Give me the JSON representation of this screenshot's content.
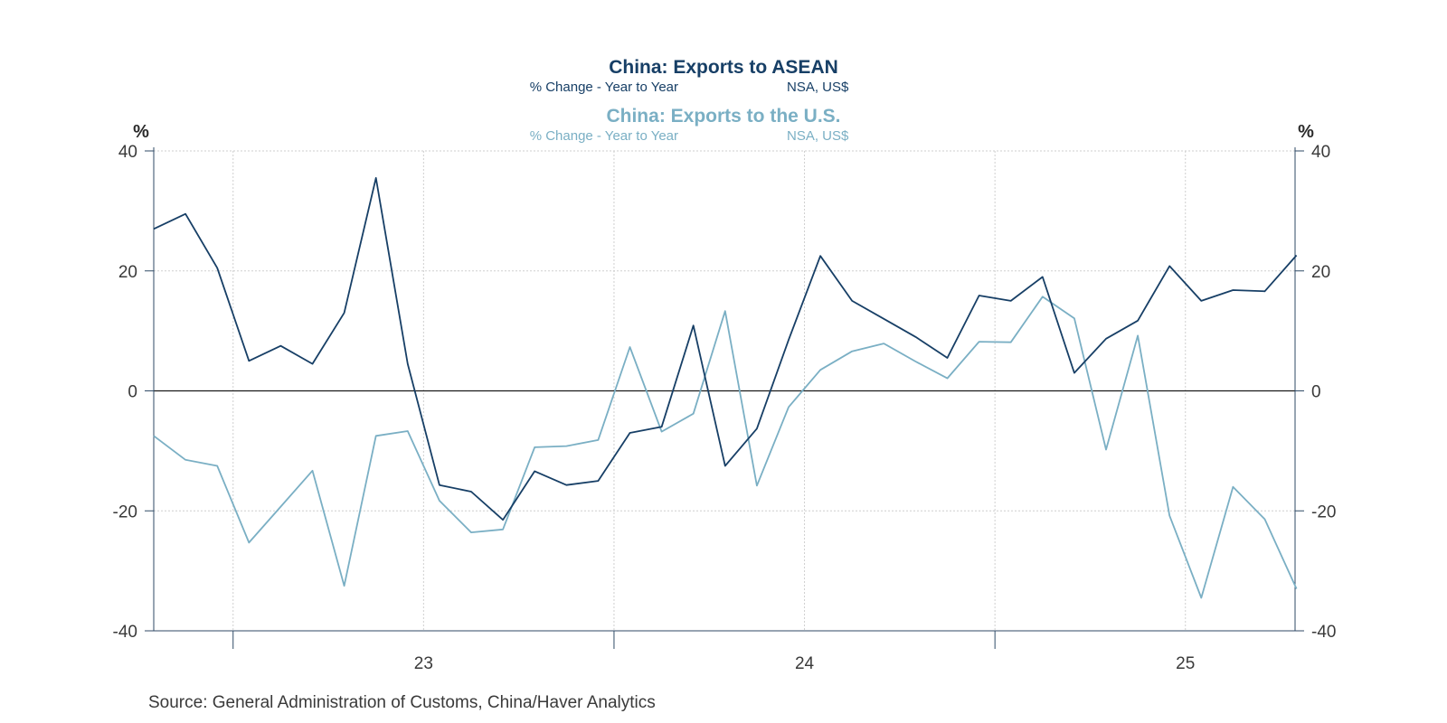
{
  "colors": {
    "series1": "#173f66",
    "series2": "#7aafc4",
    "axis": "#2f4a66",
    "grid": "#cfcfcf"
  },
  "chart_data": {
    "type": "line",
    "titles": [
      {
        "title": "China: Exports to ASEAN",
        "subtitle_left": "% Change - Year to Year",
        "subtitle_right": "NSA, US$"
      },
      {
        "title": "China: Exports to the U.S.",
        "subtitle_left": "% Change - Year to Year",
        "subtitle_right": "NSA, US$"
      }
    ],
    "y_unit_left": "%",
    "y_unit_right": "%",
    "ylim": [
      -40,
      40
    ],
    "yticks": [
      40,
      20,
      0,
      -20,
      -40
    ],
    "ytick_labels": [
      "40",
      "20",
      "0",
      "-20",
      "-40"
    ],
    "x_period_labels": [
      "23",
      "24",
      "25"
    ],
    "x_start": "2022-04",
    "x": [
      "2022-04",
      "2022-05",
      "2022-06",
      "2022-07",
      "2022-08",
      "2022-09",
      "2022-10",
      "2022-11",
      "2022-12",
      "2023-01",
      "2023-02",
      "2023-03",
      "2023-04",
      "2023-05",
      "2023-06",
      "2023-07",
      "2023-08",
      "2023-09",
      "2023-10",
      "2023-11",
      "2023-12",
      "2024-01",
      "2024-02",
      "2024-03",
      "2024-04",
      "2024-05",
      "2024-06",
      "2024-07",
      "2024-08",
      "2024-09",
      "2024-10",
      "2024-11",
      "2024-12",
      "2025-01",
      "2025-02",
      "2025-03",
      "2025-04",
      "2025-05"
    ],
    "series": [
      {
        "name": "China: Exports to ASEAN",
        "values": [
          27,
          29.5,
          20.5,
          5,
          7.5,
          4.5,
          13,
          35.5,
          4.5,
          -15.7,
          -16.8,
          -21.5,
          -13.4,
          -15.7,
          -15,
          -7,
          -6,
          10.9,
          -12.5,
          -6.3,
          8.5,
          22.5,
          15,
          12,
          9,
          5.5,
          15.9,
          15,
          19,
          3,
          8.7,
          11.7,
          20.8,
          15,
          16.8,
          16.6,
          22.6,
          null
        ]
      },
      {
        "name": "China: Exports to the U.S.",
        "values": [
          -7.5,
          -11.5,
          -12.5,
          -25.3,
          -19.3,
          -13.3,
          -32.5,
          -7.5,
          -6.7,
          -18.3,
          -23.6,
          -23.1,
          -9.4,
          -9.2,
          -8.2,
          7.3,
          -6.8,
          -3.8,
          13.3,
          -15.8,
          -2.7,
          3.5,
          6.6,
          7.9,
          4.9,
          2.1,
          8.2,
          8.1,
          15.7,
          12.1,
          -9.8,
          9.2,
          -20.8,
          -34.5,
          -16,
          -21.4,
          -33,
          null
        ]
      }
    ]
  },
  "source": "Source:  General Administration of Customs, China/Haver Analytics"
}
